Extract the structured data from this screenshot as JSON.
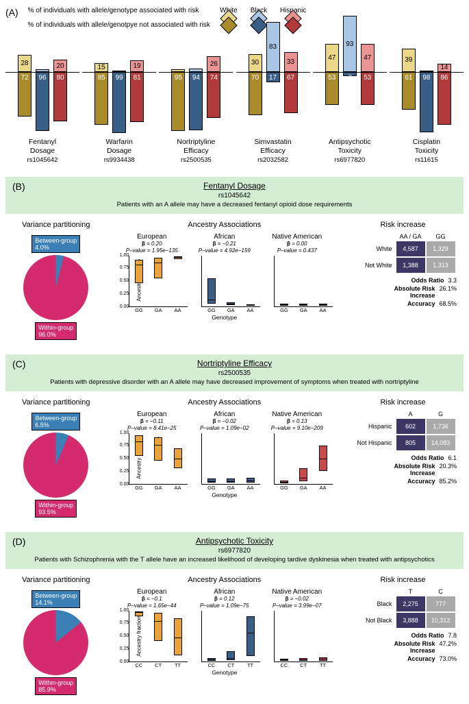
{
  "colors": {
    "white_light": "#e9d88a",
    "white_dark": "#a88c2c",
    "black_light": "#a9c6e4",
    "black_dark": "#3a5f86",
    "hisp_light": "#e99393",
    "hisp_dark": "#b13a3a",
    "pie_between": "#3a7fb5",
    "pie_within": "#d42b6f",
    "box_eur": "#e8a43a",
    "box_afr": "#3a5f86",
    "box_nat": "#c94b4b",
    "cell_dark": "#3d3765",
    "cell_grey": "#a9a9a9",
    "panel_bg": "#d5ecd5"
  },
  "legend": {
    "risk_line": "% of individuals with allele/genotype associated with risk",
    "norisk_line": "% of individuals with allele/genotpye not associated with risk",
    "eth": [
      "White",
      "Black",
      "Hispanic"
    ]
  },
  "panelA": {
    "label": "(A)",
    "groups": [
      {
        "name": "Fentanyl\nDosage",
        "rs": "rs1045642",
        "up": [
          28,
          4,
          20
        ],
        "dn": [
          72,
          96,
          80
        ]
      },
      {
        "name": "Warfarin\nDosage",
        "rs": "rs9934438",
        "up": [
          15,
          1,
          19
        ],
        "dn": [
          85,
          99,
          81
        ]
      },
      {
        "name": "Nortriptyline\nEfficacy",
        "rs": "rs2500535",
        "up": [
          5,
          6,
          26
        ],
        "dn": [
          95,
          94,
          74
        ]
      },
      {
        "name": "Simvastatin\nEfficacy",
        "rs": "rs2032582",
        "up": [
          30,
          83,
          33
        ],
        "dn": [
          70,
          17,
          67
        ]
      },
      {
        "name": "Antipsychotic\nToxicity",
        "rs": "rs6977820",
        "up": [
          47,
          93,
          47
        ],
        "dn": [
          53,
          7,
          53
        ]
      },
      {
        "name": "Cisplatin\nToxicity",
        "rs": "rs11615",
        "up": [
          39,
          2,
          14
        ],
        "dn": [
          61,
          98,
          86
        ]
      }
    ]
  },
  "panels": [
    {
      "label": "(B)",
      "title": "Fentanyl Dosage",
      "rs": "rs1045642",
      "desc": "Patients with an A allele may have a decreased fentanyl opioid dose requirements",
      "pie": {
        "between": 4.0,
        "within": 96.0
      },
      "assoc": {
        "xticks": [
          "GG",
          "GA",
          "AA"
        ],
        "ylab_on": 0,
        "cols": [
          {
            "name": "European",
            "beta": "0.20",
            "p": "1.95e−135",
            "color": "box_eur",
            "boxes": [
              {
                "lo": 45,
                "hi": 92,
                "med": 80
              },
              {
                "lo": 55,
                "hi": 95,
                "med": 85
              },
              {
                "lo": 92,
                "hi": 98,
                "med": 96
              }
            ]
          },
          {
            "name": "African",
            "beta": "−0.21",
            "p": "4.92e−159",
            "color": "box_afr",
            "boxes": [
              {
                "lo": 5,
                "hi": 55,
                "med": 12
              },
              {
                "lo": 2,
                "hi": 8,
                "med": 4
              },
              {
                "lo": 1,
                "hi": 4,
                "med": 2
              }
            ]
          },
          {
            "name": "Native American",
            "beta": "0.00",
            "p": "0.437",
            "color": "box_nat",
            "boxes": [
              {
                "lo": 1,
                "hi": 5,
                "med": 2
              },
              {
                "lo": 1,
                "hi": 5,
                "med": 2
              },
              {
                "lo": 1,
                "hi": 5,
                "med": 2
              }
            ]
          }
        ]
      },
      "risk": {
        "cols": [
          "AA / GA",
          "GG"
        ],
        "rows": [
          [
            "White",
            "4,587",
            "1,329"
          ],
          [
            "Not White",
            "1,388",
            "1,313"
          ]
        ],
        "odds": "3.3",
        "ari": "26.1%",
        "acc": "68.5%"
      }
    },
    {
      "label": "(C)",
      "title": "Nortriptyline Efficacy",
      "rs": "rs2500535",
      "desc": "Patients with depressive disorder with an A allele may have decreased improvement of symptoms when treated with nortriptyline",
      "pie": {
        "between": 6.5,
        "within": 93.5
      },
      "assoc": {
        "xticks": [
          "GG",
          "GA",
          "AA"
        ],
        "ylab_on": 0,
        "cols": [
          {
            "name": "European",
            "beta": "−0.11",
            "p": "8.41e−25",
            "color": "box_eur",
            "boxes": [
              {
                "lo": 55,
                "hi": 95,
                "med": 82
              },
              {
                "lo": 45,
                "hi": 92,
                "med": 75
              },
              {
                "lo": 30,
                "hi": 70,
                "med": 48
              }
            ]
          },
          {
            "name": "African",
            "beta": "−0.02",
            "p": "1.09e−02",
            "color": "box_afr",
            "boxes": [
              {
                "lo": 2,
                "hi": 10,
                "med": 4
              },
              {
                "lo": 2,
                "hi": 10,
                "med": 4
              },
              {
                "lo": 2,
                "hi": 12,
                "med": 5
              }
            ]
          },
          {
            "name": "Native American",
            "beta": "0.13",
            "p": "9.10e−209",
            "color": "box_nat",
            "boxes": [
              {
                "lo": 1,
                "hi": 6,
                "med": 2
              },
              {
                "lo": 5,
                "hi": 30,
                "med": 10
              },
              {
                "lo": 25,
                "hi": 75,
                "med": 48
              }
            ]
          }
        ]
      },
      "risk": {
        "cols": [
          "A",
          "G"
        ],
        "rows": [
          [
            "Hispanic",
            "602",
            "1,736"
          ],
          [
            "Not Hispanic",
            "805",
            "14,083"
          ]
        ],
        "odds": "6.1",
        "ari": "20.3%",
        "acc": "85.2%"
      }
    },
    {
      "label": "(D)",
      "title": "Antipsychotic Toxicity",
      "rs": "rs6977820",
      "desc": "Patients with Schizophrenia with the T allele have an increased likelihood of developing tardive dyskinesia when treated with antipsychotics",
      "pie": {
        "between": 14.1,
        "within": 85.9
      },
      "assoc": {
        "xticks": [
          "CC",
          "CT",
          "TT"
        ],
        "ylab_on": 0,
        "cols": [
          {
            "name": "European",
            "beta": "−0.1",
            "p": "1.65e−44",
            "color": "box_eur",
            "boxes": [
              {
                "lo": 88,
                "hi": 98,
                "med": 96
              },
              {
                "lo": 40,
                "hi": 95,
                "med": 78
              },
              {
                "lo": 12,
                "hi": 85,
                "med": 45
              }
            ]
          },
          {
            "name": "African",
            "beta": "0.12",
            "p": "1.09e−75",
            "color": "box_afr",
            "boxes": [
              {
                "lo": 1,
                "hi": 6,
                "med": 2
              },
              {
                "lo": 2,
                "hi": 20,
                "med": 5
              },
              {
                "lo": 10,
                "hi": 88,
                "med": 55
              }
            ]
          },
          {
            "name": "Native American",
            "beta": "−0.02",
            "p": "3.99e−07",
            "color": "box_nat",
            "boxes": [
              {
                "lo": 1,
                "hi": 5,
                "med": 2
              },
              {
                "lo": 1,
                "hi": 6,
                "med": 2
              },
              {
                "lo": 1,
                "hi": 8,
                "med": 3
              }
            ]
          }
        ]
      },
      "risk": {
        "cols": [
          "T",
          "C"
        ],
        "rows": [
          [
            "Black",
            "2,275",
            "777"
          ],
          [
            "Not Black",
            "3,888",
            "10,312"
          ]
        ],
        "odds": "7.8",
        "ari": "47.2%",
        "acc": "73.0%"
      }
    }
  ],
  "labels": {
    "variance": "Variance partitioning",
    "between": "Between-group",
    "within": "Within-group",
    "assoc": "Ancestry Associations",
    "risk": "Risk increase",
    "ylab": "Ancestry fraction",
    "xlab": "Genotype",
    "odds": "Odds Ratio",
    "ari": "Absolute Risk Increase",
    "acc": "Accuracy"
  }
}
